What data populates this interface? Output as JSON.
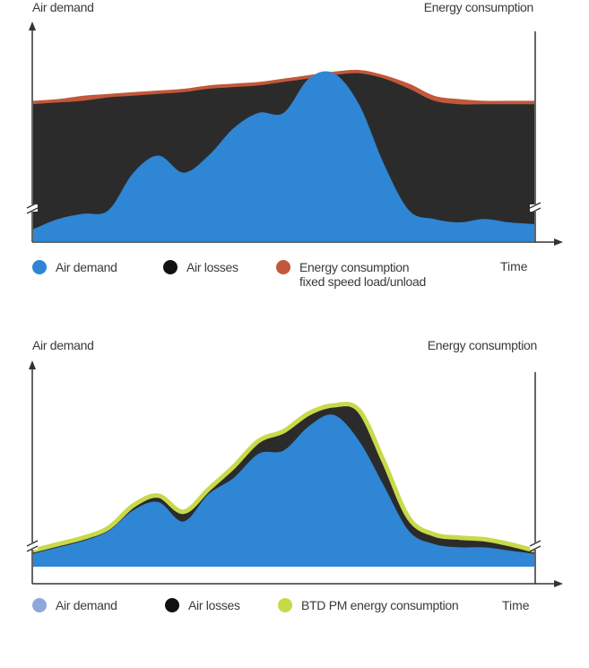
{
  "chart_data": [
    {
      "type": "area",
      "left_axis_label": "Air demand",
      "right_axis_label": "Energy consumption",
      "xlabel": "Time",
      "x": [
        0,
        5,
        10,
        15,
        20,
        25,
        30,
        35,
        40,
        45,
        50,
        55,
        60,
        65,
        70,
        75,
        80,
        85,
        90,
        95,
        100
      ],
      "series": [
        {
          "name": "Air demand",
          "color": "#2e86d4",
          "values": [
            7,
            13,
            16,
            18,
            40,
            50,
            40,
            50,
            66,
            75,
            75,
            95,
            98,
            80,
            45,
            18,
            13,
            11,
            13,
            11,
            10
          ]
        },
        {
          "name": "Air losses",
          "color": "#2b2b2b",
          "values": [
            80,
            81,
            82,
            84,
            85,
            86,
            87,
            89,
            90,
            91,
            93,
            95,
            97,
            98,
            95,
            89,
            82,
            80,
            80,
            80,
            80
          ]
        },
        {
          "name": "Energy consumption",
          "name_line2": "fixed speed load/unload",
          "color": "#c2573a",
          "values": [
            82,
            83,
            85,
            86,
            87,
            88,
            89,
            91,
            92,
            93,
            95,
            97,
            99,
            100,
            97,
            92,
            85,
            83,
            82,
            82,
            82
          ]
        }
      ]
    },
    {
      "type": "area",
      "left_axis_label": "Air demand",
      "right_axis_label": "Energy consumption",
      "xlabel": "Time",
      "x": [
        0,
        5,
        10,
        15,
        20,
        25,
        30,
        35,
        40,
        45,
        50,
        55,
        60,
        65,
        70,
        75,
        80,
        85,
        90,
        95,
        100
      ],
      "series": [
        {
          "name": "Air demand",
          "color": "#2e86d4",
          "values": [
            8,
            12,
            16,
            22,
            35,
            40,
            28,
            45,
            55,
            70,
            72,
            87,
            94,
            78,
            50,
            22,
            14,
            12,
            12,
            10,
            8
          ]
        },
        {
          "name": "Air losses",
          "color": "#2b2b2b",
          "values": [
            10,
            14,
            18,
            24,
            38,
            44,
            34,
            48,
            62,
            78,
            84,
            95,
            100,
            97,
            65,
            30,
            20,
            18,
            17,
            14,
            10
          ]
        },
        {
          "name": "BTD PM energy consumption",
          "color": "#c8d94a",
          "values": [
            10,
            14,
            18,
            24,
            38,
            44,
            34,
            48,
            62,
            78,
            84,
            95,
            100,
            97,
            65,
            30,
            20,
            18,
            17,
            14,
            10
          ]
        }
      ]
    }
  ]
}
